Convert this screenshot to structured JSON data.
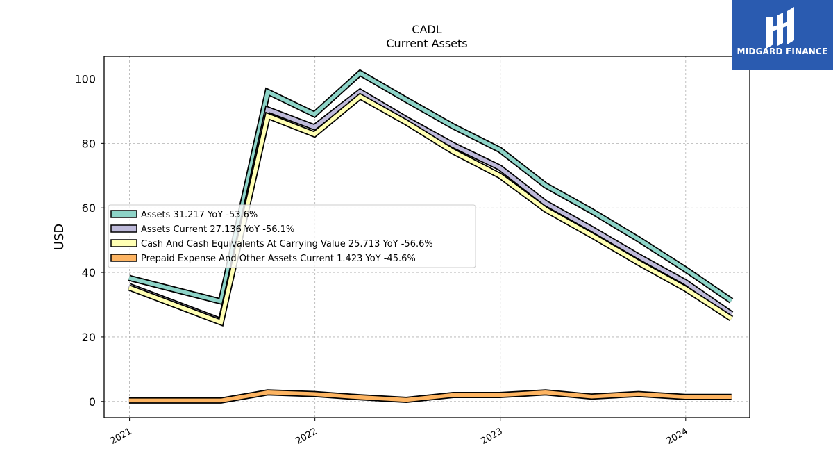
{
  "brand": {
    "name": "MIDGARD FINANCE",
    "color": "#2a5bb0"
  },
  "chart_data": {
    "type": "line",
    "title": "CADL",
    "subtitle": "Current  Assets",
    "xlabel": "",
    "ylabel": "USD",
    "xlim": [
      "2020-11-12",
      "2024-05-06"
    ],
    "ylim": [
      -5,
      107
    ],
    "yticks": [
      0,
      20,
      40,
      60,
      80,
      100
    ],
    "xticks": [
      {
        "date": "2021-01-01",
        "label": "2021"
      },
      {
        "date": "2022-01-01",
        "label": "2022"
      },
      {
        "date": "2023-01-01",
        "label": "2023"
      },
      {
        "date": "2024-01-01",
        "label": "2024"
      }
    ],
    "grid": true,
    "legend_position": "center-left",
    "x": [
      "2020-12-31",
      "2021-06-30",
      "2021-09-30",
      "2021-12-31",
      "2022-03-31",
      "2022-06-30",
      "2022-09-30",
      "2022-12-31",
      "2023-03-31",
      "2023-06-30",
      "2023-09-30",
      "2023-12-31",
      "2024-03-31"
    ],
    "series": [
      {
        "name": "Assets  31.217 YoY -53.6%",
        "color": "#8dd3c7",
        "values": [
          38.3,
          31.0,
          96.0,
          89.0,
          101.8,
          93.5,
          85.3,
          78.0,
          67.0,
          59.0,
          50.3,
          41.0,
          31.2
        ]
      },
      {
        "name": "Assets Current  27.136 YoY -56.1%",
        "color": "#bebada",
        "values": [
          35.8,
          25.0,
          90.5,
          85.0,
          96.0,
          87.5,
          79.5,
          72.5,
          61.5,
          53.5,
          45.0,
          37.0,
          27.1
        ]
      },
      {
        "name": "Cash And Cash Equivalents At Carrying Value  25.713 YoY -56.6%",
        "color": "#ffffb3",
        "values": [
          35.3,
          24.5,
          88.5,
          82.8,
          94.5,
          86.5,
          77.5,
          70.0,
          59.5,
          51.5,
          43.0,
          35.0,
          25.7
        ]
      },
      {
        "name": "Prepaid Expense And Other Assets Current  1.423 YoY -45.6%",
        "color": "#fdb462",
        "values": [
          0.3,
          0.3,
          2.8,
          2.3,
          1.3,
          0.5,
          2.0,
          2.0,
          2.8,
          1.5,
          2.3,
          1.4,
          1.4
        ]
      }
    ]
  }
}
